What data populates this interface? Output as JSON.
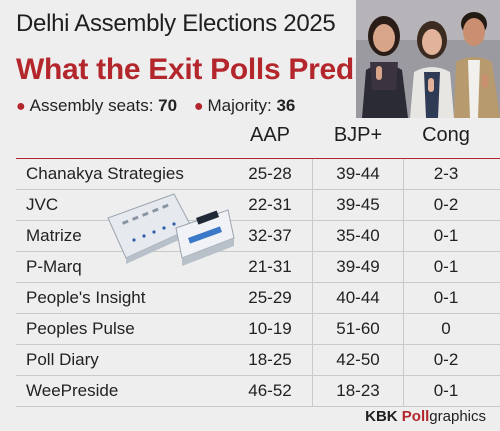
{
  "header": {
    "title": "Delhi Assembly Elections 2025",
    "subtitle": "What the Exit Polls Predict",
    "facts": [
      {
        "label": "Assembly seats:",
        "value": "70"
      },
      {
        "label": "Majority:",
        "value": "36"
      }
    ]
  },
  "chart_data": {
    "type": "table",
    "columns": [
      "AAP",
      "BJP+",
      "Cong"
    ],
    "rows": [
      {
        "agency": "Chanakya Strategies",
        "values": [
          "25-28",
          "39-44",
          "2-3"
        ]
      },
      {
        "agency": "JVC",
        "values": [
          "22-31",
          "39-45",
          "0-2"
        ]
      },
      {
        "agency": "Matrize",
        "values": [
          "32-37",
          "35-40",
          "0-1"
        ]
      },
      {
        "agency": "P-Marq",
        "values": [
          "21-31",
          "39-49",
          "0-1"
        ]
      },
      {
        "agency": "People's Insight",
        "values": [
          "25-29",
          "40-44",
          "0-1"
        ]
      },
      {
        "agency": "Peoples Pulse",
        "values": [
          "10-19",
          "51-60",
          "0"
        ]
      },
      {
        "agency": "Poll Diary",
        "values": [
          "18-25",
          "42-50",
          "0-2"
        ]
      },
      {
        "agency": "WeePreside",
        "values": [
          "46-52",
          "18-23",
          "0-1"
        ]
      }
    ]
  },
  "footer": {
    "brand_prefix": "KBK ",
    "brand_accent": "Poll",
    "brand_suffix": "graphics"
  },
  "colors": {
    "accent": "#b3262b",
    "background": "#eeeeee",
    "divider": "#c9c9c9"
  },
  "icons": [
    "voters-photo-illustration",
    "evm-machine-illustration"
  ]
}
